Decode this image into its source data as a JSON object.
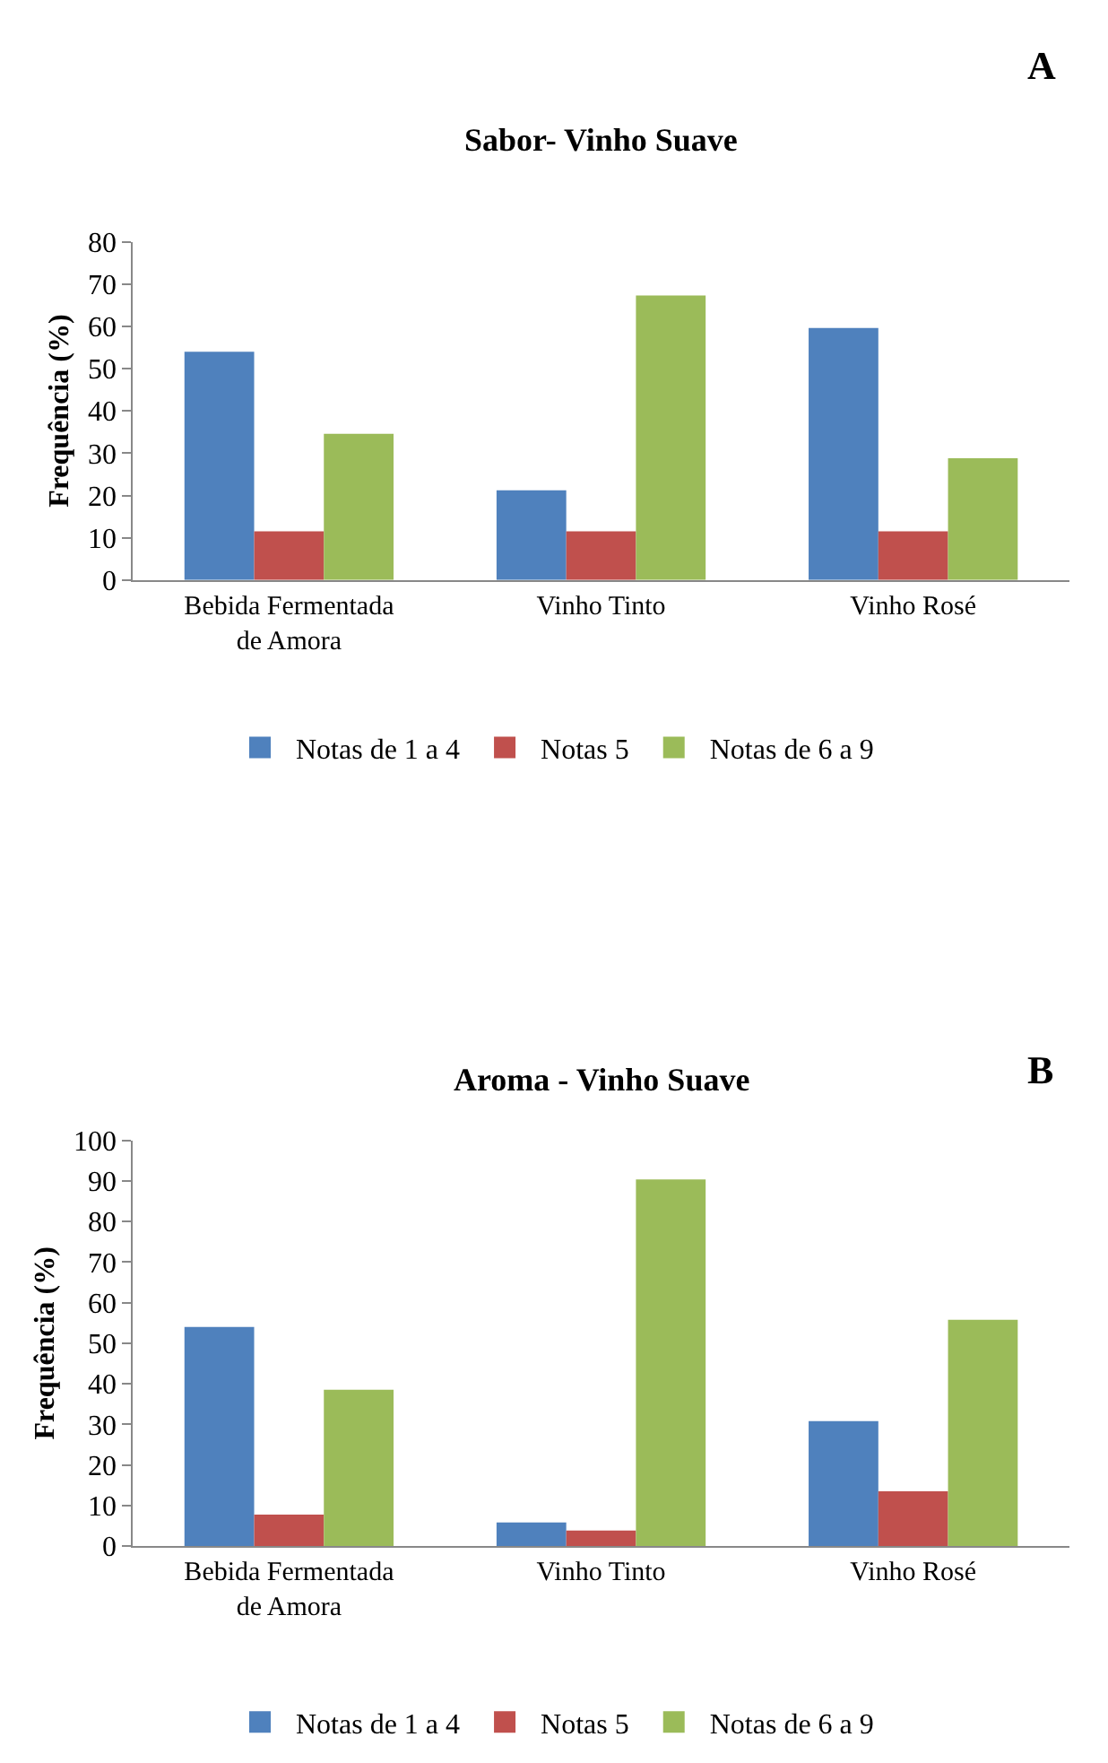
{
  "chart_data": [
    {
      "type": "bar",
      "title": "Sabor- Vinho Suave",
      "ylabel": "Frequência (%)",
      "annotations": [
        "A"
      ],
      "categories": [
        "Bebida Fermentada de Amora",
        "Vinho Tinto",
        "Vinho Rosé"
      ],
      "series": [
        {
          "name": "Notas de 1 a 4",
          "color": "#4f81bd",
          "values": [
            54,
            21.2,
            59.6
          ]
        },
        {
          "name": "Notas 5",
          "color": "#c0504d",
          "values": [
            11.5,
            11.5,
            11.5
          ]
        },
        {
          "name": "Notas de 6 a 9",
          "color": "#9bbb59",
          "values": [
            34.6,
            67.3,
            28.8
          ]
        }
      ],
      "ylim": [
        0,
        80
      ],
      "yticks": [
        0,
        10,
        20,
        30,
        40,
        50,
        60,
        70,
        80
      ],
      "grid": false,
      "legend": "bottom"
    },
    {
      "type": "bar",
      "title": "Aroma - Vinho Suave",
      "ylabel": "Frequência (%)",
      "annotations": [
        "B"
      ],
      "categories": [
        "Bebida Fermentada de Amora",
        "Vinho Tinto",
        "Vinho Rosé"
      ],
      "series": [
        {
          "name": "Notas de 1 a 4",
          "color": "#4f81bd",
          "values": [
            54,
            5.8,
            30.8
          ]
        },
        {
          "name": "Notas 5",
          "color": "#c0504d",
          "values": [
            7.7,
            3.8,
            13.5
          ]
        },
        {
          "name": "Notas de 6 a 9",
          "color": "#9bbb59",
          "values": [
            38.5,
            90.4,
            55.8
          ]
        }
      ],
      "ylim": [
        0,
        100
      ],
      "yticks": [
        0,
        10,
        20,
        30,
        40,
        50,
        60,
        70,
        80,
        90,
        100
      ],
      "grid": false,
      "legend": "bottom"
    }
  ]
}
